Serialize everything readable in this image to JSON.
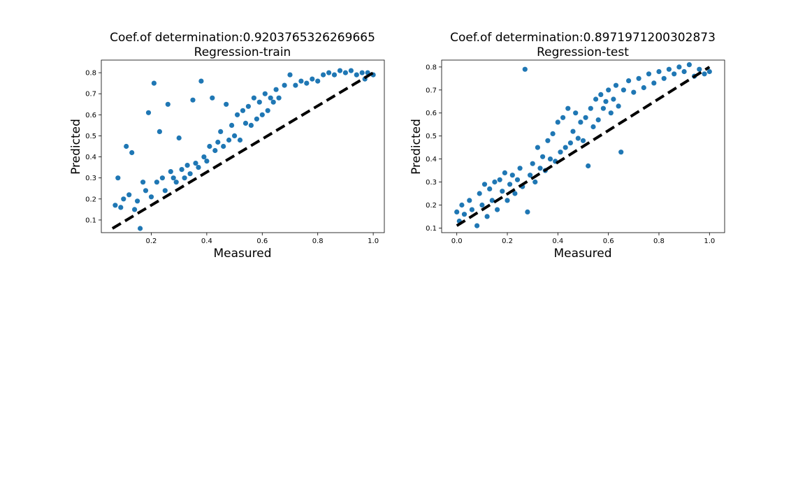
{
  "chart_data": [
    {
      "type": "scatter",
      "title": "Coef.of determination:0.9203765326269665",
      "subtitle": "Regression-train",
      "xlabel": "Measured",
      "ylabel": "Predicted",
      "xlim": [
        0.02,
        1.04
      ],
      "ylim": [
        0.04,
        0.86
      ],
      "xticks": [
        0.2,
        0.4,
        0.6,
        0.8,
        1.0
      ],
      "xtick_labels": [
        "0.2",
        "0.4",
        "0.6",
        "0.8",
        "1.0"
      ],
      "yticks": [
        0.1,
        0.2,
        0.3,
        0.4,
        0.5,
        0.6,
        0.7,
        0.8
      ],
      "ytick_labels": [
        "0.1",
        "0.2",
        "0.3",
        "0.4",
        "0.5",
        "0.6",
        "0.7",
        "0.8"
      ],
      "marker_color": "#1f77b4",
      "reference_line": {
        "x": [
          0.06,
          1.0
        ],
        "y": [
          0.06,
          0.8
        ],
        "color": "#000000",
        "style": "dashed"
      },
      "points": [
        [
          0.07,
          0.17
        ],
        [
          0.08,
          0.3
        ],
        [
          0.09,
          0.16
        ],
        [
          0.1,
          0.2
        ],
        [
          0.11,
          0.45
        ],
        [
          0.12,
          0.22
        ],
        [
          0.13,
          0.42
        ],
        [
          0.14,
          0.15
        ],
        [
          0.15,
          0.19
        ],
        [
          0.16,
          0.06
        ],
        [
          0.17,
          0.28
        ],
        [
          0.18,
          0.24
        ],
        [
          0.19,
          0.61
        ],
        [
          0.2,
          0.21
        ],
        [
          0.21,
          0.75
        ],
        [
          0.22,
          0.28
        ],
        [
          0.23,
          0.52
        ],
        [
          0.24,
          0.3
        ],
        [
          0.25,
          0.24
        ],
        [
          0.26,
          0.65
        ],
        [
          0.27,
          0.33
        ],
        [
          0.28,
          0.3
        ],
        [
          0.29,
          0.28
        ],
        [
          0.3,
          0.49
        ],
        [
          0.31,
          0.34
        ],
        [
          0.32,
          0.3
        ],
        [
          0.33,
          0.36
        ],
        [
          0.34,
          0.32
        ],
        [
          0.35,
          0.67
        ],
        [
          0.36,
          0.37
        ],
        [
          0.37,
          0.35
        ],
        [
          0.38,
          0.76
        ],
        [
          0.39,
          0.4
        ],
        [
          0.4,
          0.38
        ],
        [
          0.41,
          0.45
        ],
        [
          0.42,
          0.68
        ],
        [
          0.43,
          0.43
        ],
        [
          0.44,
          0.47
        ],
        [
          0.45,
          0.52
        ],
        [
          0.46,
          0.45
        ],
        [
          0.47,
          0.65
        ],
        [
          0.48,
          0.48
        ],
        [
          0.49,
          0.55
        ],
        [
          0.5,
          0.5
        ],
        [
          0.51,
          0.6
        ],
        [
          0.52,
          0.48
        ],
        [
          0.53,
          0.62
        ],
        [
          0.54,
          0.56
        ],
        [
          0.55,
          0.64
        ],
        [
          0.56,
          0.55
        ],
        [
          0.57,
          0.68
        ],
        [
          0.58,
          0.58
        ],
        [
          0.59,
          0.66
        ],
        [
          0.6,
          0.6
        ],
        [
          0.61,
          0.7
        ],
        [
          0.62,
          0.62
        ],
        [
          0.63,
          0.68
        ],
        [
          0.64,
          0.66
        ],
        [
          0.65,
          0.72
        ],
        [
          0.66,
          0.68
        ],
        [
          0.68,
          0.74
        ],
        [
          0.7,
          0.79
        ],
        [
          0.72,
          0.74
        ],
        [
          0.74,
          0.76
        ],
        [
          0.76,
          0.75
        ],
        [
          0.78,
          0.77
        ],
        [
          0.8,
          0.76
        ],
        [
          0.82,
          0.79
        ],
        [
          0.84,
          0.8
        ],
        [
          0.86,
          0.79
        ],
        [
          0.88,
          0.81
        ],
        [
          0.9,
          0.8
        ],
        [
          0.92,
          0.81
        ],
        [
          0.94,
          0.79
        ],
        [
          0.96,
          0.8
        ],
        [
          0.97,
          0.77
        ],
        [
          0.98,
          0.8
        ],
        [
          1.0,
          0.79
        ]
      ]
    },
    {
      "type": "scatter",
      "title": "Coef.of determination:0.8971971200302873",
      "subtitle": "Regression-test",
      "xlabel": "Measured",
      "ylabel": "Predicted",
      "xlim": [
        -0.06,
        1.06
      ],
      "ylim": [
        0.08,
        0.83
      ],
      "xticks": [
        0.0,
        0.2,
        0.4,
        0.6,
        0.8,
        1.0
      ],
      "xtick_labels": [
        "0.0",
        "0.2",
        "0.4",
        "0.6",
        "0.8",
        "1.0"
      ],
      "yticks": [
        0.1,
        0.2,
        0.3,
        0.4,
        0.5,
        0.6,
        0.7,
        0.8
      ],
      "ytick_labels": [
        "0.1",
        "0.2",
        "0.3",
        "0.4",
        "0.5",
        "0.6",
        "0.7",
        "0.8"
      ],
      "marker_color": "#1f77b4",
      "reference_line": {
        "x": [
          0.0,
          1.0
        ],
        "y": [
          0.11,
          0.8
        ],
        "color": "#000000",
        "style": "dashed"
      },
      "points": [
        [
          0.0,
          0.17
        ],
        [
          0.01,
          0.13
        ],
        [
          0.02,
          0.2
        ],
        [
          0.03,
          0.16
        ],
        [
          0.05,
          0.22
        ],
        [
          0.06,
          0.18
        ],
        [
          0.08,
          0.11
        ],
        [
          0.09,
          0.25
        ],
        [
          0.1,
          0.2
        ],
        [
          0.11,
          0.29
        ],
        [
          0.12,
          0.15
        ],
        [
          0.13,
          0.27
        ],
        [
          0.14,
          0.22
        ],
        [
          0.15,
          0.3
        ],
        [
          0.16,
          0.18
        ],
        [
          0.17,
          0.31
        ],
        [
          0.18,
          0.26
        ],
        [
          0.19,
          0.34
        ],
        [
          0.2,
          0.22
        ],
        [
          0.21,
          0.29
        ],
        [
          0.22,
          0.33
        ],
        [
          0.23,
          0.25
        ],
        [
          0.24,
          0.31
        ],
        [
          0.25,
          0.36
        ],
        [
          0.26,
          0.28
        ],
        [
          0.27,
          0.79
        ],
        [
          0.28,
          0.17
        ],
        [
          0.29,
          0.33
        ],
        [
          0.3,
          0.38
        ],
        [
          0.31,
          0.3
        ],
        [
          0.32,
          0.45
        ],
        [
          0.33,
          0.36
        ],
        [
          0.34,
          0.41
        ],
        [
          0.35,
          0.35
        ],
        [
          0.36,
          0.48
        ],
        [
          0.37,
          0.4
        ],
        [
          0.38,
          0.51
        ],
        [
          0.39,
          0.39
        ],
        [
          0.4,
          0.56
        ],
        [
          0.41,
          0.43
        ],
        [
          0.42,
          0.58
        ],
        [
          0.43,
          0.45
        ],
        [
          0.44,
          0.62
        ],
        [
          0.45,
          0.47
        ],
        [
          0.46,
          0.52
        ],
        [
          0.47,
          0.6
        ],
        [
          0.48,
          0.49
        ],
        [
          0.49,
          0.56
        ],
        [
          0.5,
          0.48
        ],
        [
          0.51,
          0.58
        ],
        [
          0.52,
          0.37
        ],
        [
          0.53,
          0.62
        ],
        [
          0.54,
          0.54
        ],
        [
          0.55,
          0.66
        ],
        [
          0.56,
          0.57
        ],
        [
          0.57,
          0.68
        ],
        [
          0.58,
          0.62
        ],
        [
          0.59,
          0.65
        ],
        [
          0.6,
          0.7
        ],
        [
          0.61,
          0.6
        ],
        [
          0.62,
          0.66
        ],
        [
          0.63,
          0.72
        ],
        [
          0.64,
          0.63
        ],
        [
          0.65,
          0.43
        ],
        [
          0.66,
          0.7
        ],
        [
          0.68,
          0.74
        ],
        [
          0.7,
          0.69
        ],
        [
          0.72,
          0.75
        ],
        [
          0.74,
          0.71
        ],
        [
          0.76,
          0.77
        ],
        [
          0.78,
          0.73
        ],
        [
          0.8,
          0.78
        ],
        [
          0.82,
          0.75
        ],
        [
          0.84,
          0.79
        ],
        [
          0.86,
          0.77
        ],
        [
          0.88,
          0.8
        ],
        [
          0.9,
          0.78
        ],
        [
          0.92,
          0.81
        ],
        [
          0.94,
          0.76
        ],
        [
          0.96,
          0.79
        ],
        [
          0.98,
          0.77
        ],
        [
          1.0,
          0.78
        ]
      ]
    }
  ]
}
